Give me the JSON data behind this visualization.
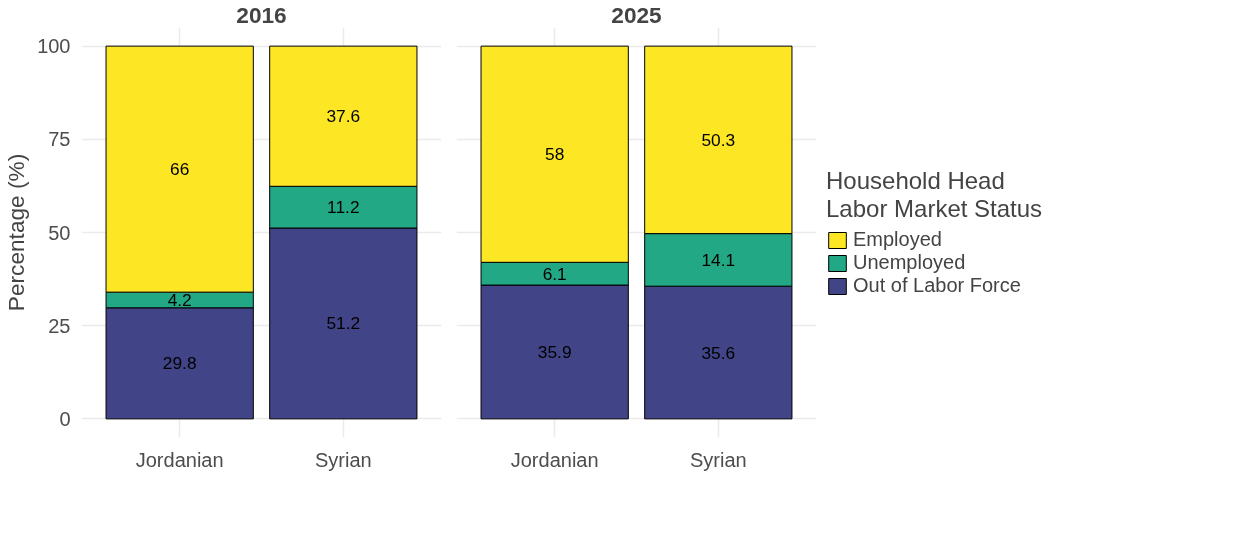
{
  "chart_data": [
    {
      "type": "bar",
      "title": "2016",
      "ylabel": "Percentage (%)",
      "categories": [
        "Jordanian",
        "Syrian"
      ],
      "stacked": true,
      "data_labels": true,
      "grid": true,
      "legend": false,
      "ylim": [
        -5,
        105
      ],
      "yticks": [
        0,
        25,
        50,
        75,
        100
      ],
      "series": [
        {
          "color": "#414487",
          "values": [
            29.8,
            51.2
          ]
        },
        {
          "color": "#22a884",
          "values": [
            4.2,
            11.2
          ]
        },
        {
          "color": "#fde725",
          "values": [
            66,
            37.6
          ]
        }
      ]
    },
    {
      "type": "bar",
      "title": "2025",
      "categories": [
        "Jordanian",
        "Syrian"
      ],
      "stacked": true,
      "data_labels": true,
      "grid": true,
      "legend": "right",
      "legend_title": "Household Head\nLabor Market Status",
      "tick_labels": "x",
      "ylim": [
        -5,
        105
      ],
      "yticks": [
        0,
        25,
        50,
        75,
        100
      ],
      "series": [
        {
          "name": "Out of Labor Force",
          "color": "#414487",
          "values": [
            35.9,
            35.6
          ]
        },
        {
          "name": "Unemployed",
          "color": "#22a884",
          "values": [
            6.1,
            14.1
          ]
        },
        {
          "name": "Employed",
          "color": "#fde725",
          "values": [
            58,
            50.3
          ]
        }
      ]
    }
  ]
}
